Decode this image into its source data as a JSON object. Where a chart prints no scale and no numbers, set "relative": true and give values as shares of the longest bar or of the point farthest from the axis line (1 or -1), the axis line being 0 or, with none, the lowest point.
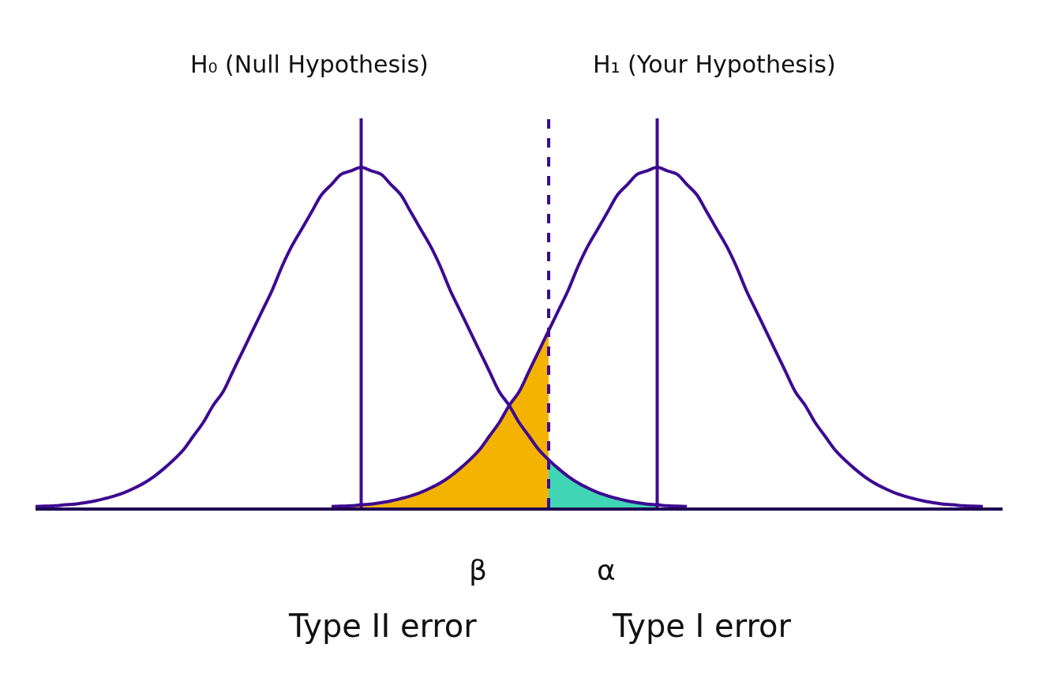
{
  "chart_data": {
    "type": "line",
    "relative": true,
    "categories": [
      null,
      null,
      null,
      null,
      null,
      null,
      null,
      null,
      null,
      null,
      null,
      null,
      null,
      null,
      null,
      null,
      null,
      null,
      null,
      null,
      null,
      null,
      null,
      null,
      null,
      null,
      null,
      null,
      null,
      null,
      null,
      null,
      null,
      null,
      null,
      null,
      null,
      null,
      null,
      null,
      null,
      null,
      null,
      null,
      null,
      null,
      null,
      null,
      null,
      null,
      null,
      null,
      null,
      null,
      null,
      null,
      null,
      null,
      null,
      null,
      null,
      null,
      null,
      null,
      null,
      null,
      null,
      null,
      null,
      null,
      null,
      null,
      null,
      null,
      null,
      null,
      null,
      null,
      null,
      null,
      null,
      null,
      null,
      null,
      null,
      null,
      null,
      null,
      null,
      null,
      null,
      null,
      null,
      null,
      null,
      null,
      null,
      null,
      null
    ],
    "series": [
      {
        "type": "area",
        "color": "#f5b301",
        "values": [
          null,
          null,
          null,
          null,
          null,
          null,
          null,
          null,
          null,
          null,
          null,
          null,
          null,
          null,
          null,
          null,
          null,
          null,
          null,
          null,
          null,
          null,
          null,
          null,
          null,
          null,
          null,
          null,
          null,
          null,
          0.003,
          0.004,
          0.005,
          0.008,
          0.01,
          0.014,
          0.019,
          0.026,
          0.034,
          0.044,
          0.057,
          0.072,
          0.091,
          0.114,
          0.14,
          0.17,
          0.21,
          0.25,
          0.3,
          0.34,
          0.4,
          0.46,
          0.52,
          null,
          null,
          null,
          null,
          null,
          null,
          null,
          null,
          null,
          null,
          null,
          null,
          null,
          null,
          null,
          null,
          null,
          null,
          null,
          null,
          null,
          null,
          null,
          null,
          null,
          null,
          null,
          null,
          null,
          null,
          null,
          null,
          null,
          null,
          null,
          null,
          null,
          null,
          null,
          null,
          null,
          null,
          null,
          null,
          null,
          null
        ]
      },
      {
        "type": "area",
        "color": "#41d6b5",
        "values": [
          null,
          null,
          null,
          null,
          null,
          null,
          null,
          null,
          null,
          null,
          null,
          null,
          null,
          null,
          null,
          null,
          null,
          null,
          null,
          null,
          null,
          null,
          null,
          null,
          null,
          null,
          null,
          null,
          null,
          null,
          null,
          null,
          null,
          null,
          null,
          null,
          null,
          null,
          null,
          null,
          null,
          null,
          null,
          null,
          null,
          null,
          null,
          null,
          null,
          null,
          null,
          null,
          0.14,
          0.114,
          0.091,
          0.072,
          0.057,
          0.044,
          0.034,
          0.026,
          0.019,
          0.014,
          0.01,
          0.008,
          null,
          null,
          null,
          null,
          null,
          null,
          null,
          null,
          null,
          null,
          null,
          null,
          null,
          null,
          null,
          null,
          null,
          null,
          null,
          null,
          null,
          null,
          null,
          null,
          null,
          null,
          null,
          null,
          null,
          null,
          null,
          null,
          null,
          null,
          null
        ]
      },
      {
        "color": "#3d0a91",
        "values": [
          0.003,
          0.004,
          0.005,
          0.008,
          0.01,
          0.014,
          0.019,
          0.026,
          0.034,
          0.044,
          0.057,
          0.072,
          0.091,
          0.114,
          0.14,
          0.17,
          0.21,
          0.25,
          0.3,
          0.34,
          0.4,
          0.46,
          0.52,
          0.58,
          0.64,
          0.71,
          0.77,
          0.82,
          0.87,
          0.92,
          0.95,
          0.98,
          0.99,
          1,
          0.99,
          0.98,
          0.95,
          0.92,
          0.87,
          0.82,
          0.77,
          0.71,
          0.64,
          0.58,
          0.52,
          0.46,
          0.4,
          0.34,
          0.3,
          0.25,
          0.21,
          0.17,
          0.14,
          0.114,
          0.091,
          0.072,
          0.057,
          0.044,
          0.034,
          0.026,
          0.019,
          0.014,
          0.01,
          0.008,
          0.005,
          0.004,
          0.003,
          null,
          null,
          null,
          null,
          null,
          null,
          null,
          null,
          null,
          null,
          null,
          null,
          null,
          null,
          null,
          null,
          null,
          null,
          null,
          null,
          null,
          null,
          null,
          null,
          null,
          null,
          null,
          null,
          null,
          null,
          null,
          null
        ]
      },
      {
        "color": "#3d0a91",
        "values": [
          null,
          null,
          null,
          null,
          null,
          null,
          null,
          null,
          null,
          null,
          null,
          null,
          null,
          null,
          null,
          null,
          null,
          null,
          null,
          null,
          null,
          null,
          null,
          null,
          null,
          null,
          null,
          null,
          null,
          null,
          0.003,
          0.004,
          0.005,
          0.008,
          0.01,
          0.014,
          0.019,
          0.026,
          0.034,
          0.044,
          0.057,
          0.072,
          0.091,
          0.114,
          0.14,
          0.17,
          0.21,
          0.25,
          0.3,
          0.34,
          0.4,
          0.46,
          0.52,
          0.58,
          0.64,
          0.71,
          0.77,
          0.82,
          0.87,
          0.92,
          0.95,
          0.98,
          0.99,
          1,
          0.99,
          0.98,
          0.95,
          0.92,
          0.87,
          0.82,
          0.77,
          0.71,
          0.64,
          0.58,
          0.52,
          0.46,
          0.4,
          0.34,
          0.3,
          0.25,
          0.21,
          0.17,
          0.14,
          0.114,
          0.091,
          0.072,
          0.057,
          0.044,
          0.034,
          0.026,
          0.019,
          0.014,
          0.01,
          0.008,
          0.005,
          0.004,
          0.003,
          null,
          null
        ]
      }
    ],
    "annotations": [
      "H₀ (Null Hypothesis)",
      "H₁ (Your Hypothesis)",
      "β",
      "α",
      "Type II error",
      "Type I error"
    ]
  }
}
